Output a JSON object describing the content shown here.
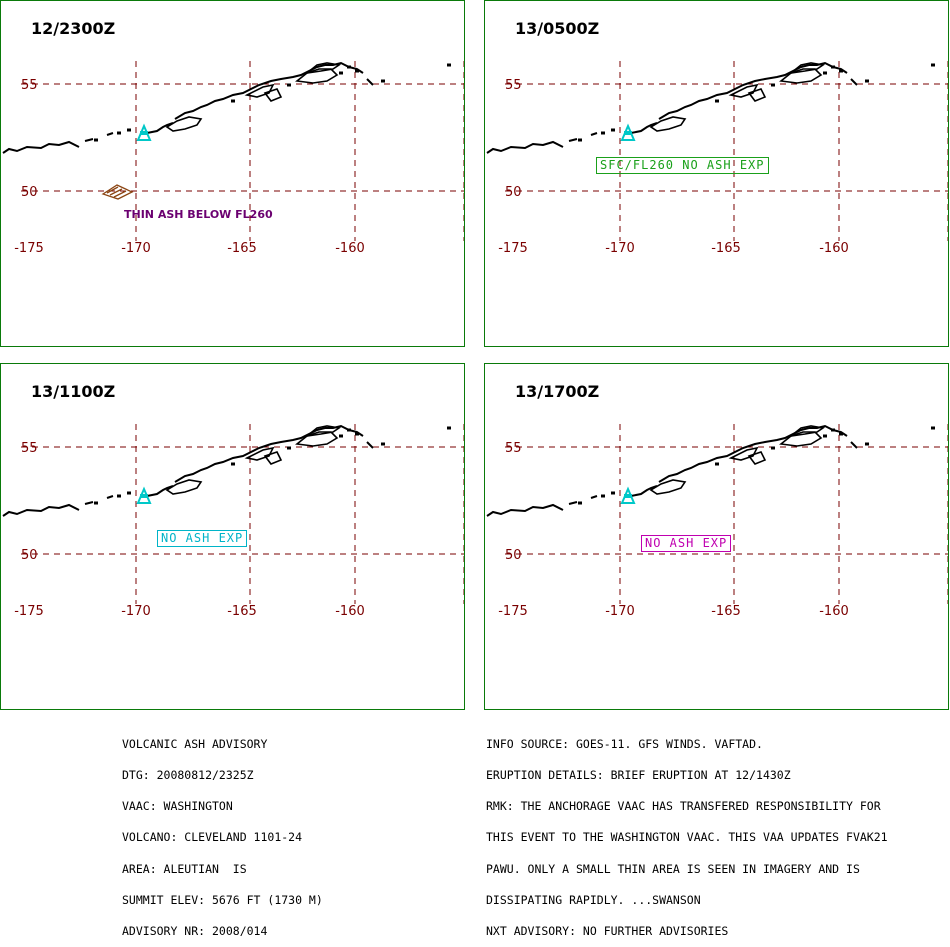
{
  "map": {
    "lat_labels": [
      "55",
      "50"
    ],
    "lon_labels": [
      "-175",
      "-170",
      "-165",
      "-160"
    ],
    "grid_color": "#7a0000",
    "coast_color": "#000000",
    "volcano_color": "#00c8c8"
  },
  "panels": [
    {
      "time": "12/2300Z",
      "label": "THIN ASH BELOW FL260",
      "label_color": "#6b0070",
      "ash_polygon": true,
      "color": "#8b4513"
    },
    {
      "time": "13/0500Z",
      "label": "SFC/FL260 NO ASH EXP",
      "label_color": "#1aa01a"
    },
    {
      "time": "13/1100Z",
      "label": "NO ASH EXP",
      "label_color": "#00b4c8"
    },
    {
      "time": "13/1700Z",
      "label": "NO ASH EXP",
      "label_color": "#c000b0"
    }
  ],
  "advisory_left": [
    "VOLCANIC ASH ADVISORY",
    "DTG: 20080812/2325Z",
    "VAAC: WASHINGTON",
    "VOLCANO: CLEVELAND 1101-24",
    "AREA: ALEUTIAN  IS",
    "SUMMIT ELEV: 5676 FT (1730 M)",
    "ADVISORY NR: 2008/014"
  ],
  "advisory_right": [
    "INFO SOURCE: GOES-11. GFS WINDS. VAFTAD.",
    "ERUPTION DETAILS: BRIEF ERUPTION AT 12/1430Z",
    "RMK: THE ANCHORAGE VAAC HAS TRANSFERED RESPONSIBILITY FOR",
    "THIS EVENT TO THE WASHINGTON VAAC. THIS VAA UPDATES FVAK21",
    "PAWU. ONLY A SMALL THIN AREA IS SEEN IN IMAGERY AND IS",
    "DISSIPATING RAPIDLY. ...SWANSON",
    "NXT ADVISORY: NO FURTHER ADVISORIES"
  ]
}
